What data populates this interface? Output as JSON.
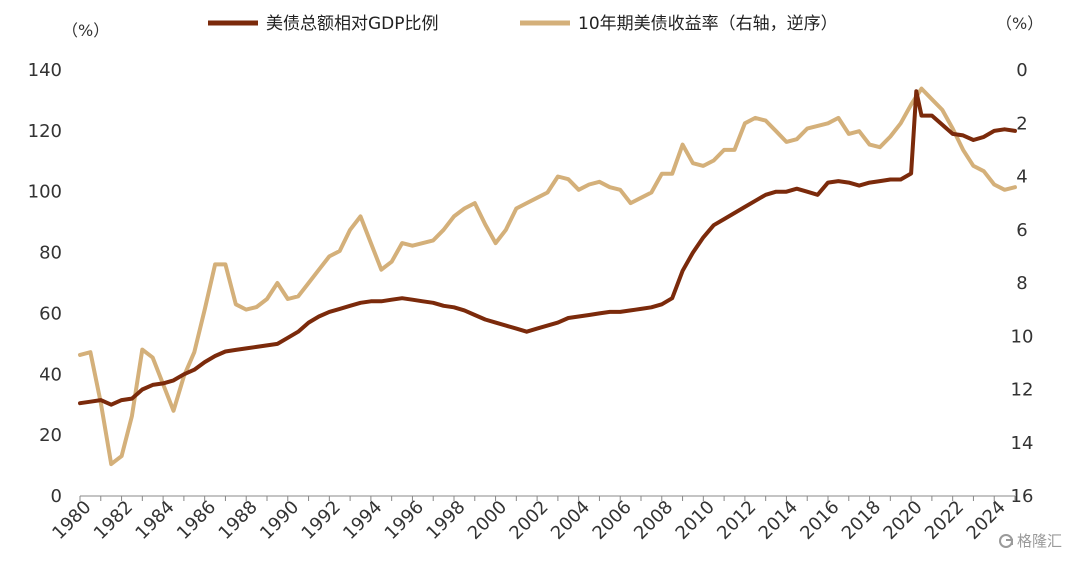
{
  "chart_data": {
    "type": "line",
    "left_axis": {
      "unit": "（%）",
      "ylim": [
        0,
        140
      ],
      "ticks": [
        0,
        20,
        40,
        60,
        80,
        100,
        120,
        140
      ]
    },
    "right_axis": {
      "unit": "（%）",
      "ylim": [
        16,
        0
      ],
      "inverted": true,
      "ticks": [
        0,
        2,
        4,
        6,
        8,
        10,
        12,
        14,
        16
      ]
    },
    "x_axis": {
      "xlim": [
        1980,
        2025
      ],
      "ticks": [
        "1980",
        "1982",
        "1984",
        "1986",
        "1988",
        "1990",
        "1992",
        "1994",
        "1996",
        "1998",
        "2000",
        "2002",
        "2004",
        "2006",
        "2008",
        "2010",
        "2012",
        "2014",
        "2016",
        "2018",
        "2020",
        "2022",
        "2024"
      ]
    },
    "legend": "top",
    "series": [
      {
        "name": "美债总额相对GDP比例",
        "axis": "left",
        "color": "#7b2a0b",
        "points": [
          [
            1980,
            30.5
          ],
          [
            1980.5,
            31
          ],
          [
            1981,
            31.5
          ],
          [
            1981.5,
            30
          ],
          [
            1982,
            31.5
          ],
          [
            1982.5,
            32
          ],
          [
            1983,
            35
          ],
          [
            1983.5,
            36.5
          ],
          [
            1984,
            37
          ],
          [
            1984.5,
            38
          ],
          [
            1985,
            40
          ],
          [
            1985.5,
            41.5
          ],
          [
            1986,
            44
          ],
          [
            1986.5,
            46
          ],
          [
            1987,
            47.5
          ],
          [
            1987.5,
            48
          ],
          [
            1988,
            48.5
          ],
          [
            1988.5,
            49
          ],
          [
            1989,
            49.5
          ],
          [
            1989.5,
            50
          ],
          [
            1990,
            52
          ],
          [
            1990.5,
            54
          ],
          [
            1991,
            57
          ],
          [
            1991.5,
            59
          ],
          [
            1992,
            60.5
          ],
          [
            1992.5,
            61.5
          ],
          [
            1993,
            62.5
          ],
          [
            1993.5,
            63.5
          ],
          [
            1994,
            64
          ],
          [
            1994.5,
            64
          ],
          [
            1995,
            64.5
          ],
          [
            1995.5,
            65
          ],
          [
            1996,
            64.5
          ],
          [
            1996.5,
            64
          ],
          [
            1997,
            63.5
          ],
          [
            1997.5,
            62.5
          ],
          [
            1998,
            62
          ],
          [
            1998.5,
            61
          ],
          [
            1999,
            59.5
          ],
          [
            1999.5,
            58
          ],
          [
            2000,
            57
          ],
          [
            2000.5,
            56
          ],
          [
            2001,
            55
          ],
          [
            2001.5,
            54
          ],
          [
            2002,
            55
          ],
          [
            2002.5,
            56
          ],
          [
            2003,
            57
          ],
          [
            2003.5,
            58.5
          ],
          [
            2004,
            59
          ],
          [
            2004.5,
            59.5
          ],
          [
            2005,
            60
          ],
          [
            2005.5,
            60.5
          ],
          [
            2006,
            60.5
          ],
          [
            2006.5,
            61
          ],
          [
            2007,
            61.5
          ],
          [
            2007.5,
            62
          ],
          [
            2008,
            63
          ],
          [
            2008.5,
            65
          ],
          [
            2009,
            74
          ],
          [
            2009.5,
            80
          ],
          [
            2010,
            85
          ],
          [
            2010.5,
            89
          ],
          [
            2011,
            91
          ],
          [
            2011.5,
            93
          ],
          [
            2012,
            95
          ],
          [
            2012.5,
            97
          ],
          [
            2013,
            99
          ],
          [
            2013.5,
            100
          ],
          [
            2014,
            100
          ],
          [
            2014.5,
            101
          ],
          [
            2015,
            100
          ],
          [
            2015.5,
            99
          ],
          [
            2016,
            103
          ],
          [
            2016.5,
            103.5
          ],
          [
            2017,
            103
          ],
          [
            2017.5,
            102
          ],
          [
            2018,
            103
          ],
          [
            2018.5,
            103.5
          ],
          [
            2019,
            104
          ],
          [
            2019.5,
            104
          ],
          [
            2020,
            106
          ],
          [
            2020.25,
            133
          ],
          [
            2020.5,
            125
          ],
          [
            2021,
            125
          ],
          [
            2021.5,
            122
          ],
          [
            2022,
            119
          ],
          [
            2022.5,
            118.5
          ],
          [
            2023,
            117
          ],
          [
            2023.5,
            118
          ],
          [
            2024,
            120
          ],
          [
            2024.5,
            120.5
          ],
          [
            2025,
            120
          ]
        ]
      },
      {
        "name": "10年期美债收益率（右轴，逆序）",
        "axis": "right",
        "color": "#d4b07a",
        "points": [
          [
            1980,
            10.7
          ],
          [
            1980.5,
            10.6
          ],
          [
            1981,
            12.5
          ],
          [
            1981.5,
            14.8
          ],
          [
            1982,
            14.5
          ],
          [
            1982.5,
            13
          ],
          [
            1983,
            10.5
          ],
          [
            1983.5,
            10.8
          ],
          [
            1984,
            11.8
          ],
          [
            1984.5,
            12.8
          ],
          [
            1985,
            11.5
          ],
          [
            1985.5,
            10.6
          ],
          [
            1986,
            9
          ],
          [
            1986.5,
            7.3
          ],
          [
            1987,
            7.3
          ],
          [
            1987.5,
            8.8
          ],
          [
            1988,
            9
          ],
          [
            1988.5,
            8.9
          ],
          [
            1989,
            8.6
          ],
          [
            1989.5,
            8
          ],
          [
            1990,
            8.6
          ],
          [
            1990.5,
            8.5
          ],
          [
            1991,
            8
          ],
          [
            1991.5,
            7.5
          ],
          [
            1992,
            7
          ],
          [
            1992.5,
            6.8
          ],
          [
            1993,
            6
          ],
          [
            1993.5,
            5.5
          ],
          [
            1994,
            6.5
          ],
          [
            1994.5,
            7.5
          ],
          [
            1995,
            7.2
          ],
          [
            1995.5,
            6.5
          ],
          [
            1996,
            6.6
          ],
          [
            1996.5,
            6.5
          ],
          [
            1997,
            6.4
          ],
          [
            1997.5,
            6
          ],
          [
            1998,
            5.5
          ],
          [
            1998.5,
            5.2
          ],
          [
            1999,
            5
          ],
          [
            1999.5,
            5.8
          ],
          [
            2000,
            6.5
          ],
          [
            2000.5,
            6
          ],
          [
            2001,
            5.2
          ],
          [
            2001.5,
            5
          ],
          [
            2002,
            4.8
          ],
          [
            2002.5,
            4.6
          ],
          [
            2003,
            4
          ],
          [
            2003.5,
            4.1
          ],
          [
            2004,
            4.5
          ],
          [
            2004.5,
            4.3
          ],
          [
            2005,
            4.2
          ],
          [
            2005.5,
            4.4
          ],
          [
            2006,
            4.5
          ],
          [
            2006.5,
            5
          ],
          [
            2007,
            4.8
          ],
          [
            2007.5,
            4.6
          ],
          [
            2008,
            3.9
          ],
          [
            2008.5,
            3.9
          ],
          [
            2009,
            2.8
          ],
          [
            2009.5,
            3.5
          ],
          [
            2010,
            3.6
          ],
          [
            2010.5,
            3.4
          ],
          [
            2011,
            3
          ],
          [
            2011.5,
            3
          ],
          [
            2012,
            2
          ],
          [
            2012.5,
            1.8
          ],
          [
            2013,
            1.9
          ],
          [
            2013.5,
            2.3
          ],
          [
            2014,
            2.7
          ],
          [
            2014.5,
            2.6
          ],
          [
            2015,
            2.2
          ],
          [
            2015.5,
            2.1
          ],
          [
            2016,
            2
          ],
          [
            2016.5,
            1.8
          ],
          [
            2017,
            2.4
          ],
          [
            2017.5,
            2.3
          ],
          [
            2018,
            2.8
          ],
          [
            2018.5,
            2.9
          ],
          [
            2019,
            2.5
          ],
          [
            2019.5,
            2
          ],
          [
            2020,
            1.3
          ],
          [
            2020.5,
            0.7
          ],
          [
            2021,
            1.1
          ],
          [
            2021.5,
            1.5
          ],
          [
            2022,
            2.2
          ],
          [
            2022.5,
            3
          ],
          [
            2023,
            3.6
          ],
          [
            2023.5,
            3.8
          ],
          [
            2024,
            4.3
          ],
          [
            2024.5,
            4.5
          ],
          [
            2025,
            4.4
          ]
        ]
      }
    ]
  },
  "watermark": "格隆汇"
}
